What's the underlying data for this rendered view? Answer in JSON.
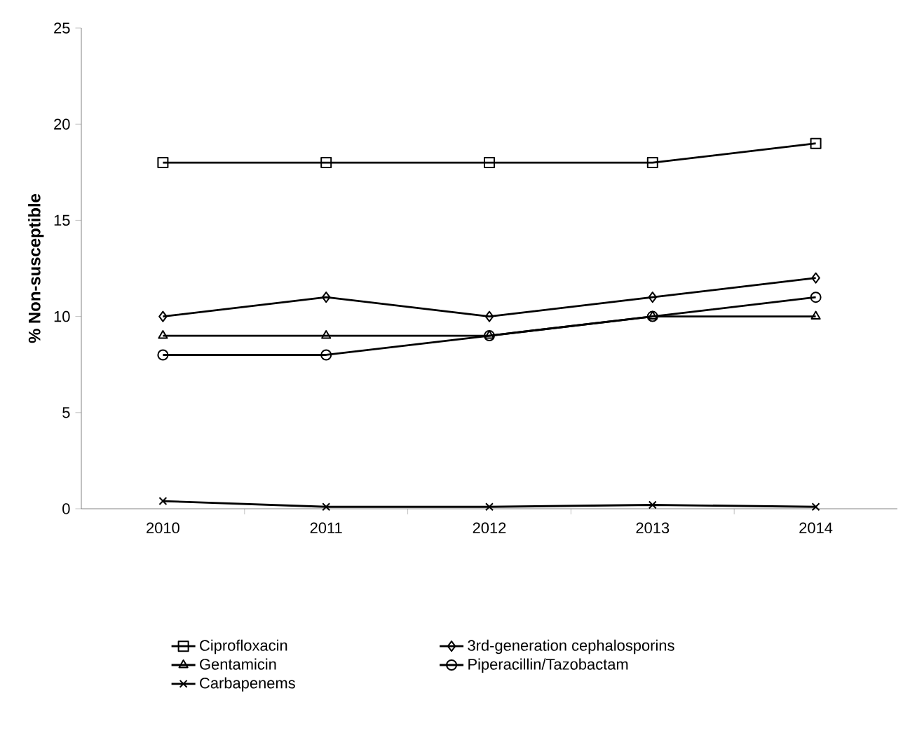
{
  "chart_data": {
    "type": "line",
    "ylabel": "% Non-susceptible",
    "categories": [
      "2010",
      "2011",
      "2012",
      "2013",
      "2014"
    ],
    "series": [
      {
        "name": "Ciprofloxacin",
        "color": "#000000",
        "marker": "square",
        "values": [
          18,
          18,
          18,
          18,
          19
        ]
      },
      {
        "name": "3rd-generation cephalosporins",
        "color": "#000000",
        "marker": "diamond",
        "values": [
          10,
          11,
          10,
          11,
          12
        ]
      },
      {
        "name": "Gentamicin",
        "color": "#000000",
        "marker": "triangle",
        "values": [
          9,
          9,
          9,
          10,
          10
        ]
      },
      {
        "name": "Piperacillin/Tazobactam",
        "color": "#000000",
        "marker": "circle",
        "values": [
          8,
          8,
          9,
          10,
          11
        ]
      },
      {
        "name": "Carbapenems",
        "color": "#000000",
        "marker": "cross",
        "values": [
          0.4,
          0.1,
          0.1,
          0.2,
          0.1
        ]
      }
    ],
    "ylim": [
      0,
      25
    ],
    "yticks": [
      0,
      5,
      10,
      15,
      20,
      25
    ],
    "grid": false,
    "legend": "bottom",
    "line_style": "solid"
  }
}
